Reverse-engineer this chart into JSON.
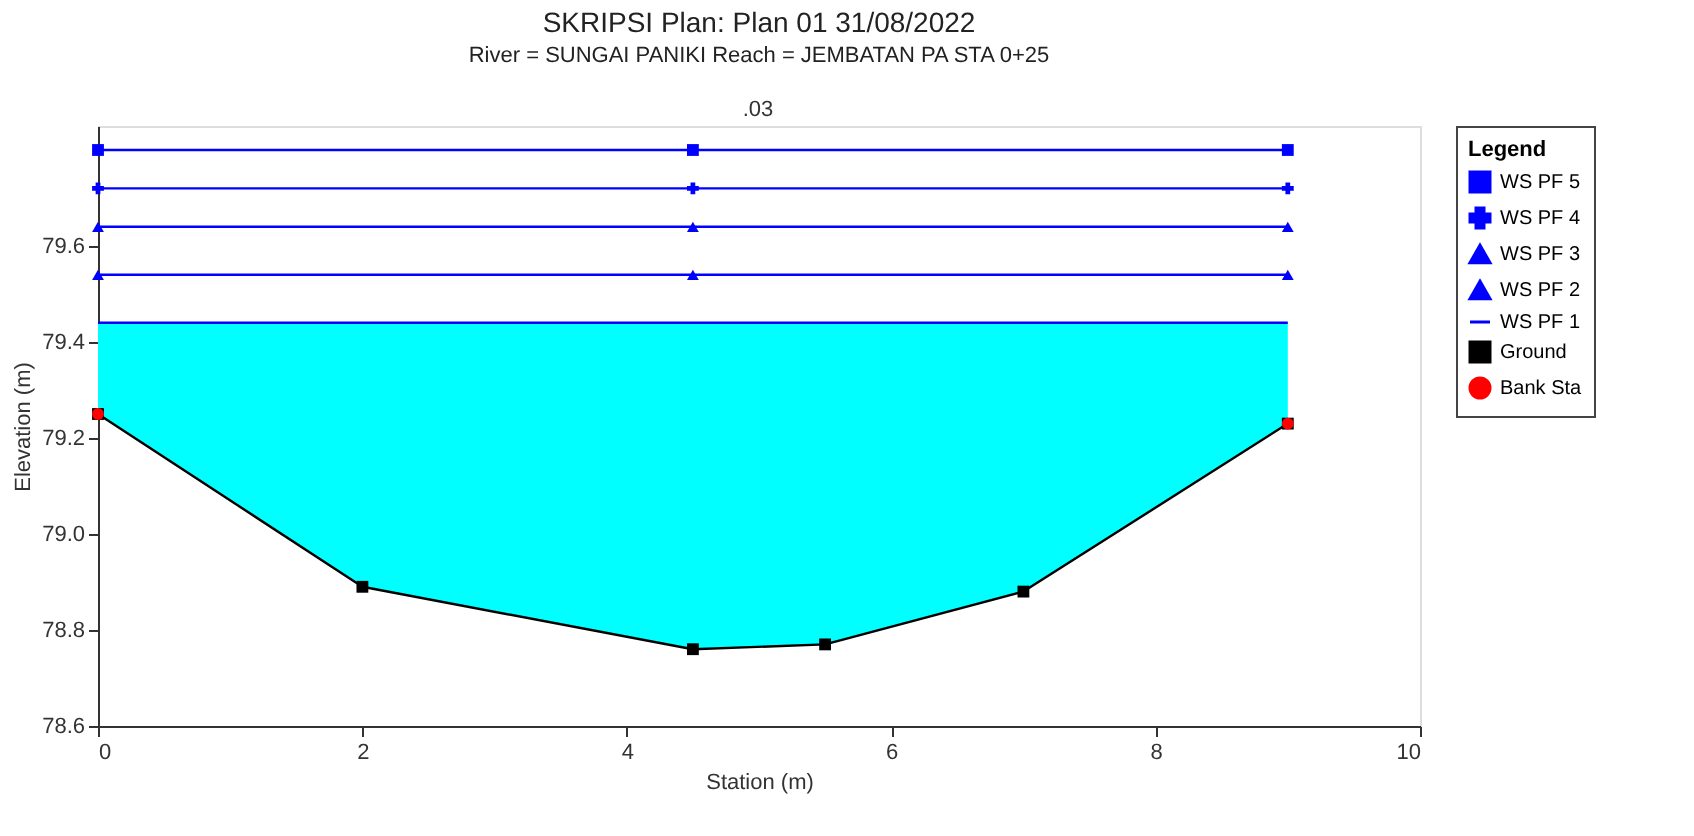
{
  "chart_data": {
    "type": "line",
    "title": "SKRIPSI      Plan: Plan 01    31/08/2022",
    "subtitle": "River = SUNGAI PANIKI   Reach = JEMBATAN PA     STA 0+25",
    "xlabel": "Station (m)",
    "ylabel": "Elevation (m)",
    "legend_title": "Legend",
    "annotations": [
      ".03"
    ],
    "xlim": [
      0,
      10
    ],
    "xticks": [
      0,
      2,
      4,
      6,
      8,
      10
    ],
    "ylim": [
      78.6,
      79.85
    ],
    "yticks": [
      78.6,
      78.8,
      {
        "value": 79,
        "label": "79.0"
      },
      79.2,
      79.4,
      79.6
    ],
    "grid": false,
    "legend": "right",
    "series": [
      {
        "name": "WS PF 5",
        "color": "#0000ff",
        "marker": "square",
        "x": [
          0,
          4.5,
          9
        ],
        "values": [
          79.8,
          79.8,
          79.8
        ]
      },
      {
        "name": "WS PF 4",
        "color": "#0000ff",
        "marker": "cross",
        "x": [
          0,
          4.5,
          9
        ],
        "values": [
          79.72,
          79.72,
          79.72
        ]
      },
      {
        "name": "WS PF 3",
        "color": "#0000ff",
        "marker": "triangle",
        "x": [
          0,
          4.5,
          9
        ],
        "values": [
          79.64,
          79.64,
          79.64
        ]
      },
      {
        "name": "WS PF 2",
        "color": "#0000ff",
        "marker": "triangle",
        "x": [
          0,
          4.5,
          9
        ],
        "values": [
          79.54,
          79.54,
          79.54
        ]
      },
      {
        "name": "WS PF 1",
        "type": "area",
        "color": "#0000ff",
        "marker": "none",
        "x": [
          0,
          2,
          4.5,
          5.5,
          7,
          9
        ],
        "values": [
          79.44,
          79.44,
          79.44,
          79.44,
          79.44,
          79.44
        ]
      },
      {
        "name": "Ground",
        "color": "#000000",
        "marker": "square",
        "x": [
          0,
          2,
          4.5,
          5.5,
          7,
          9
        ],
        "values": [
          79.25,
          78.89,
          78.76,
          78.77,
          78.88,
          79.23
        ]
      },
      {
        "name": "Bank Sta",
        "type": "scatter",
        "color": "#ff0000",
        "marker": "circle",
        "x": [
          0,
          9
        ],
        "values": [
          79.25,
          79.23
        ]
      }
    ]
  }
}
